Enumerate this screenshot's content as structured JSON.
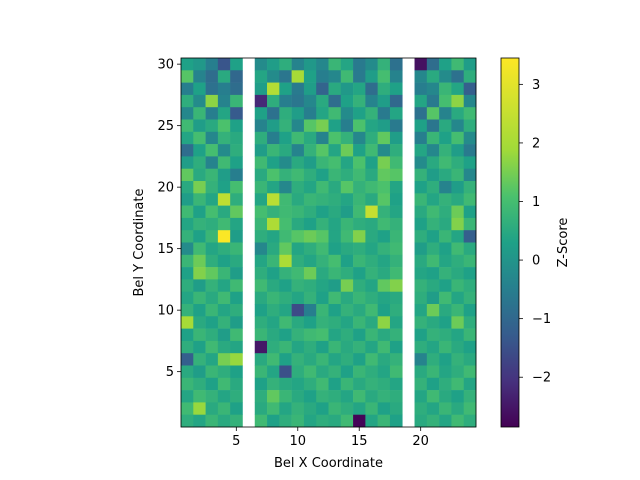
{
  "chart_data": {
    "type": "heatmap",
    "xlabel": "Bel X Coordinate",
    "ylabel": "Bel Y Coordinate",
    "colorbar_label": "Z-Score",
    "colormap": "viridis",
    "xlim": [
      0.5,
      24.5
    ],
    "ylim": [
      0.5,
      30.5
    ],
    "x_ticks": [
      5,
      10,
      15,
      20
    ],
    "y_ticks": [
      5,
      10,
      15,
      20,
      25,
      30
    ],
    "color_range": [
      -2.85,
      3.45
    ],
    "colorbar_ticks": [
      -2,
      -1,
      0,
      1,
      2,
      3
    ],
    "empty_columns": [
      6,
      19
    ],
    "x": [
      1,
      2,
      3,
      4,
      5,
      6,
      7,
      8,
      9,
      10,
      11,
      12,
      13,
      14,
      15,
      16,
      17,
      18,
      19,
      20,
      21,
      22,
      23,
      24
    ],
    "y": [
      1,
      2,
      3,
      4,
      5,
      6,
      7,
      8,
      9,
      10,
      11,
      12,
      13,
      14,
      15,
      16,
      17,
      18,
      19,
      20,
      21,
      22,
      23,
      24,
      25,
      26,
      27,
      28,
      29,
      30
    ],
    "z_rows_top_to_bottom": [
      [
        0.3,
        0.1,
        -0.5,
        -1.4,
        0.3,
        null,
        -0.2,
        0.2,
        0.6,
        -0.4,
        0.1,
        -0.3,
        0.8,
        0.4,
        -0.6,
        -0.2,
        0.7,
        -0.8,
        null,
        -2.6,
        -0.9,
        0.3,
        0.9,
        0.2
      ],
      [
        1.2,
        -0.4,
        -0.9,
        0.5,
        -1.0,
        null,
        0.4,
        -0.2,
        -0.7,
        2.0,
        0.3,
        -0.5,
        -0.3,
        0.9,
        -0.6,
        0.2,
        1.0,
        -0.4,
        null,
        -0.3,
        0.5,
        -0.2,
        -0.8,
        0.6
      ],
      [
        -0.5,
        0.3,
        -0.8,
        -0.5,
        -0.9,
        null,
        0.2,
        2.2,
        0.3,
        -0.6,
        0.2,
        -1.1,
        0.5,
        0.1,
        0.4,
        -0.9,
        0.6,
        0.3,
        null,
        -0.5,
        -0.3,
        0.8,
        0.4,
        -1.2
      ],
      [
        0.6,
        -0.2,
        1.7,
        -0.4,
        0.8,
        null,
        -2.2,
        0.6,
        -0.5,
        -0.7,
        -0.3,
        0.5,
        -0.9,
        0.3,
        0.7,
        -0.4,
        0.2,
        -1.0,
        null,
        0.4,
        -0.6,
        1.0,
        1.7,
        -0.3
      ],
      [
        -0.3,
        0.8,
        -0.5,
        0.4,
        -1.3,
        null,
        0.3,
        -0.8,
        0.6,
        0.2,
        -0.5,
        0.4,
        0.9,
        -0.2,
        0.3,
        0.7,
        -0.6,
        0.4,
        null,
        -0.8,
        1.2,
        -0.4,
        0.5,
        0.9
      ],
      [
        0.9,
        0.2,
        0.5,
        1.1,
        0.3,
        null,
        -0.4,
        0.2,
        0.7,
        -0.3,
        1.2,
        1.5,
        0.3,
        -0.5,
        1.1,
        0.4,
        0.2,
        -0.6,
        null,
        0.3,
        -0.7,
        0.5,
        -0.3,
        0.6
      ],
      [
        0.4,
        1.0,
        -0.3,
        0.7,
        0.5,
        null,
        0.6,
        -0.5,
        0.3,
        0.9,
        0.5,
        -0.4,
        1.1,
        0.7,
        -0.3,
        0.6,
        1.3,
        0.2,
        null,
        -0.5,
        0.8,
        0.3,
        1.0,
        -0.2
      ],
      [
        -0.9,
        0.3,
        1.0,
        -0.2,
        0.6,
        null,
        0.2,
        0.8,
        0.5,
        -0.4,
        0.7,
        1.2,
        0.4,
        1.4,
        0.3,
        0.9,
        -0.2,
        0.6,
        null,
        0.4,
        -0.3,
        0.7,
        0.2,
        -0.6
      ],
      [
        0.2,
        0.6,
        -0.4,
        0.9,
        0.3,
        null,
        0.9,
        0.3,
        -0.2,
        0.5,
        0.2,
        0.8,
        1.0,
        0.4,
        1.1,
        0.3,
        1.5,
        0.9,
        null,
        -0.2,
        0.5,
        0.9,
        0.6,
        0.3
      ],
      [
        1.3,
        0.5,
        0.8,
        0.2,
        -0.5,
        null,
        0.5,
        1.1,
        0.7,
        0.9,
        0.6,
        0.3,
        0.8,
        0.6,
        0.9,
        0.5,
        1.3,
        1.2,
        null,
        0.7,
        0.2,
        0.5,
        0.8,
        -0.3
      ],
      [
        0.5,
        1.5,
        0.7,
        0.3,
        1.0,
        null,
        0.8,
        0.4,
        -0.3,
        0.6,
        0.4,
        0.9,
        0.5,
        1.2,
        0.7,
        0.9,
        1.1,
        0.4,
        null,
        0.3,
        0.6,
        -0.4,
        0.2,
        0.7
      ],
      [
        0.2,
        0.8,
        0.4,
        2.4,
        0.6,
        null,
        0.4,
        2.3,
        0.9,
        0.5,
        0.8,
        0.7,
        0.6,
        0.4,
        0.8,
        0.5,
        1.2,
        0.3,
        null,
        0.8,
        0.4,
        0.7,
        0.5,
        0.9
      ],
      [
        0.9,
        0.3,
        1.0,
        0.5,
        1.3,
        null,
        1.0,
        0.7,
        0.9,
        0.8,
        0.6,
        0.3,
        0.5,
        0.2,
        0.9,
        2.5,
        0.7,
        0.4,
        null,
        0.5,
        0.9,
        0.6,
        1.4,
        0.3
      ],
      [
        0.4,
        0.7,
        0.6,
        0.9,
        0.4,
        null,
        0.8,
        2.1,
        1.0,
        0.5,
        0.3,
        0.7,
        0.4,
        0.8,
        0.6,
        0.5,
        0.9,
        0.7,
        null,
        0.3,
        0.7,
        0.5,
        1.6,
        0.8
      ],
      [
        0.7,
        0.3,
        0.8,
        3.4,
        0.2,
        null,
        0.6,
        0.4,
        0.9,
        1.2,
        1.4,
        1.2,
        0.4,
        0.9,
        1.6,
        0.5,
        0.3,
        0.8,
        null,
        0.6,
        0.3,
        0.8,
        0.4,
        -1.2
      ],
      [
        -0.2,
        0.9,
        0.4,
        0.6,
        0.8,
        null,
        -0.3,
        0.5,
        1.3,
        0.4,
        0.6,
        0.9,
        0.3,
        0.5,
        0.6,
        0.4,
        0.7,
        0.9,
        null,
        0.2,
        0.6,
        0.3,
        0.9,
        0.5
      ],
      [
        0.8,
        1.4,
        0.6,
        0.3,
        0.5,
        null,
        0.4,
        0.8,
        2.1,
        0.6,
        0.4,
        0.7,
        1.0,
        0.3,
        0.8,
        0.6,
        0.4,
        0.7,
        null,
        0.5,
        0.9,
        0.4,
        0.6,
        0.8
      ],
      [
        0.3,
        1.6,
        1.3,
        0.8,
        0.2,
        null,
        0.6,
        0.3,
        0.7,
        0.9,
        1.4,
        0.5,
        0.8,
        0.6,
        0.3,
        0.7,
        0.5,
        0.9,
        null,
        0.4,
        0.3,
        0.7,
        0.5,
        0.3
      ],
      [
        0.6,
        0.2,
        0.7,
        0.4,
        0.9,
        null,
        0.9,
        0.5,
        0.3,
        0.7,
        0.6,
        0.4,
        0.2,
        1.5,
        0.6,
        0.4,
        1.3,
        1.6,
        null,
        0.7,
        0.5,
        0.3,
        0.8,
        0.6
      ],
      [
        0.4,
        0.8,
        0.5,
        0.9,
        0.3,
        null,
        0.5,
        0.8,
        0.6,
        0.4,
        0.7,
        0.3,
        0.9,
        0.5,
        0.8,
        0.6,
        0.4,
        0.5,
        null,
        0.6,
        0.2,
        0.9,
        0.4,
        0.7
      ],
      [
        0.7,
        0.3,
        0.8,
        0.4,
        0.6,
        null,
        0.3,
        0.6,
        0.4,
        -1.6,
        -0.5,
        0.8,
        0.3,
        0.7,
        0.5,
        0.9,
        0.3,
        0.6,
        null,
        0.4,
        1.4,
        0.5,
        0.8,
        0.3
      ],
      [
        2.0,
        0.5,
        0.3,
        0.7,
        0.2,
        null,
        0.6,
        0.4,
        0.9,
        0.5,
        0.3,
        0.7,
        0.6,
        0.4,
        0.8,
        0.5,
        1.7,
        0.4,
        null,
        0.7,
        0.5,
        0.3,
        1.4,
        0.6
      ],
      [
        0.3,
        0.8,
        0.6,
        0.2,
        0.9,
        null,
        0.8,
        0.5,
        0.3,
        0.7,
        0.9,
        1.0,
        0.4,
        0.6,
        0.3,
        0.8,
        0.5,
        0.7,
        null,
        0.3,
        0.7,
        0.6,
        0.4,
        0.8
      ],
      [
        0.6,
        0.3,
        0.9,
        0.5,
        0.4,
        null,
        -2.5,
        0.6,
        0.8,
        0.4,
        0.6,
        0.3,
        0.8,
        0.5,
        0.7,
        0.4,
        0.9,
        0.3,
        null,
        0.6,
        0.4,
        0.8,
        0.5,
        0.3
      ],
      [
        -1.2,
        0.7,
        0.4,
        1.5,
        1.8,
        null,
        0.5,
        0.9,
        0.3,
        0.7,
        0.5,
        0.8,
        0.4,
        0.6,
        0.3,
        0.9,
        0.5,
        0.7,
        null,
        -0.4,
        0.6,
        0.3,
        0.7,
        0.5
      ],
      [
        0.5,
        0.2,
        0.8,
        0.6,
        0.3,
        null,
        0.8,
        0.4,
        -1.5,
        0.6,
        0.9,
        0.5,
        0.7,
        0.3,
        0.8,
        0.6,
        0.4,
        0.9,
        null,
        0.5,
        0.8,
        0.4,
        0.6,
        0.9
      ],
      [
        0.8,
        0.6,
        0.3,
        0.9,
        0.5,
        null,
        0.3,
        0.7,
        0.5,
        0.4,
        0.6,
        0.9,
        0.3,
        0.8,
        0.5,
        0.7,
        0.6,
        0.4,
        null,
        0.7,
        0.3,
        0.6,
        0.9,
        0.4
      ],
      [
        0.4,
        0.9,
        0.7,
        0.4,
        0.6,
        null,
        0.6,
        1.3,
        0.8,
        0.5,
        0.3,
        0.7,
        0.6,
        0.4,
        0.9,
        0.5,
        0.7,
        0.6,
        null,
        0.4,
        0.9,
        0.5,
        0.3,
        0.7
      ],
      [
        0.9,
        1.8,
        0.5,
        0.8,
        0.3,
        null,
        0.5,
        0.9,
        0.4,
        0.7,
        0.5,
        0.3,
        0.8,
        0.6,
        0.4,
        0.8,
        0.3,
        0.5,
        null,
        0.6,
        0.4,
        0.8,
        0.5,
        0.9
      ],
      [
        0.6,
        0.4,
        0.8,
        0.5,
        0.7,
        null,
        0.9,
        0.3,
        0.6,
        0.8,
        0.4,
        0.6,
        0.5,
        0.9,
        -2.8,
        0.4,
        0.8,
        0.3,
        null,
        0.5,
        0.7,
        0.4,
        0.9,
        0.6
      ]
    ]
  }
}
